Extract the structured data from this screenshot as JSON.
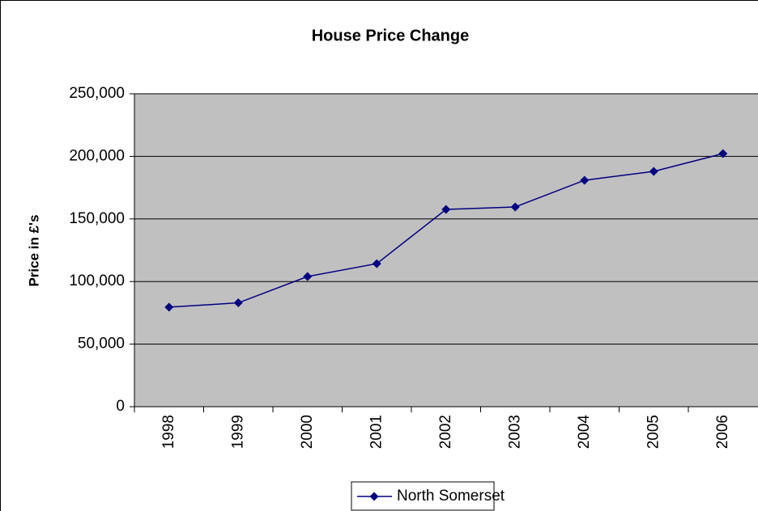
{
  "chart_data": {
    "type": "line",
    "title": "House Price Change",
    "y_label": "Price in £'s",
    "categories": [
      "1998",
      "1999",
      "2000",
      "2001",
      "2002",
      "2003",
      "2004",
      "2005",
      "2006"
    ],
    "series": [
      {
        "name": "North Somerset",
        "color": "#000080",
        "values": [
          79500,
          83000,
          104000,
          114300,
          157600,
          159600,
          180900,
          188000,
          202200
        ]
      }
    ],
    "ylim": [
      0,
      250000
    ],
    "yticks": [
      0,
      {
        "value": 50000,
        "label": "50,000"
      },
      {
        "value": 100000,
        "label": "100,000"
      },
      {
        "value": 150000,
        "label": "150,000"
      },
      {
        "value": 200000,
        "label": "200,000"
      },
      {
        "value": 250000,
        "label": "250,000"
      }
    ],
    "grid": true,
    "plot_background": "#c0c0c0",
    "legend": "bottom"
  }
}
